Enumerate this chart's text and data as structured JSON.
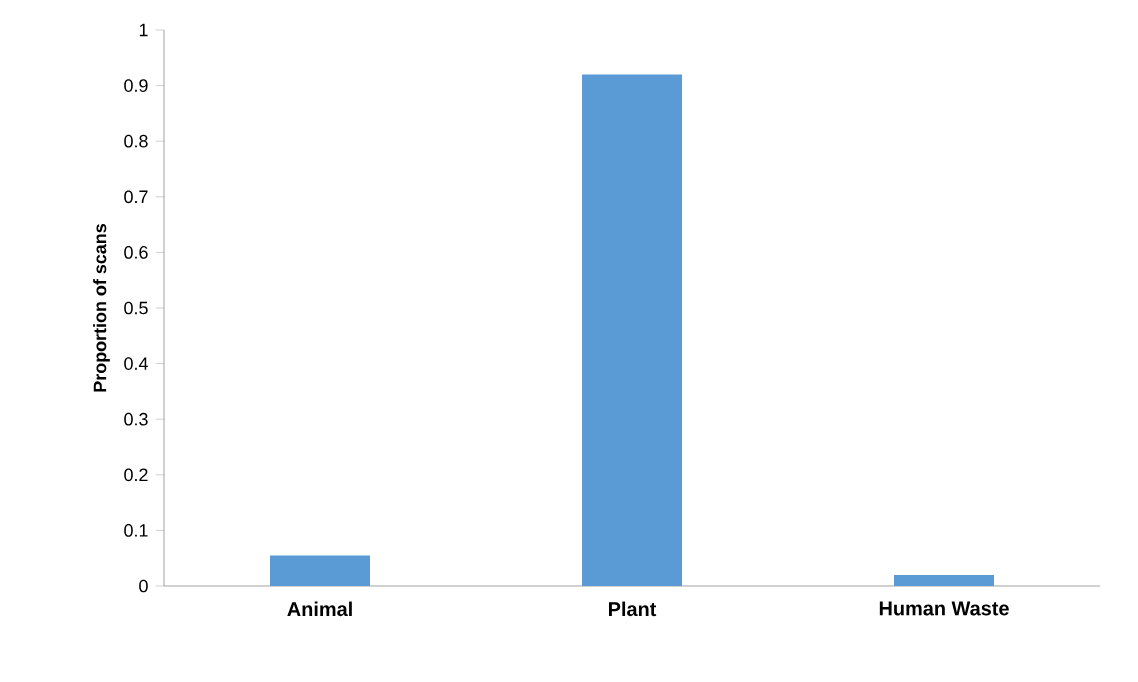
{
  "chart_data": {
    "type": "bar",
    "ylabel": "Proportion of scans",
    "categories": [
      "Animal",
      "Plant",
      "Human Waste"
    ],
    "values": [
      0.055,
      0.92,
      0.02
    ],
    "color": "#5b9bd5",
    "ylim": [
      0,
      1
    ],
    "yticks": [
      0,
      0.1,
      0.2,
      0.3,
      0.4,
      0.5,
      0.6,
      0.7,
      0.8,
      0.9,
      1
    ]
  }
}
